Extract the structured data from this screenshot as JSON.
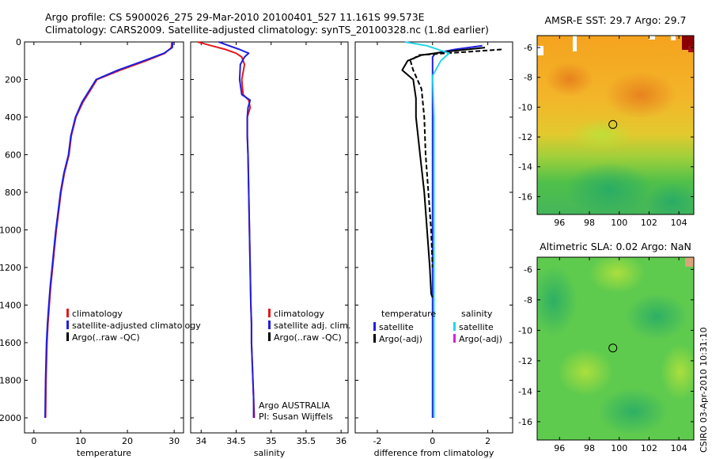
{
  "title": {
    "line1": "Argo profile: CS 5900026_275 29-Mar-2010 20100401_527 11.161S 99.573E",
    "line2": "Climatology: CARS2009. Satellite-adjusted climatology: synTS_20100328.nc (1.8d earlier)"
  },
  "depth_axis": {
    "ylim": [
      0,
      2080
    ],
    "ticks": [
      0,
      200,
      400,
      600,
      800,
      1000,
      1200,
      1400,
      1600,
      1800,
      2000
    ],
    "labels": [
      "0",
      "200",
      "400",
      "600",
      "800",
      "1000",
      "1200",
      "1400",
      "1600",
      "1800",
      "2000"
    ]
  },
  "colors": {
    "climatology": "#e31a1c",
    "satellite": "#1f1fe0",
    "argo": "#000000",
    "sal_satellite": "#21d6e8",
    "sal_argo": "#d61fd6"
  },
  "chart_data": [
    {
      "type": "line",
      "name": "temperature-panel",
      "xlabel": "temperature",
      "xlim": [
        -2,
        32
      ],
      "xticks": [
        0,
        10,
        20,
        30
      ],
      "xticklabels": [
        "0",
        "10",
        "20",
        "30"
      ],
      "legend": [
        "climatology",
        "satellite-adjusted climatology",
        "Argo(..raw -QC)"
      ],
      "series": [
        {
          "name": "climatology",
          "color": "#e31a1c",
          "x": [
            29.5,
            29.4,
            28.0,
            24.0,
            18.5,
            13.5,
            12.0,
            10.5,
            9.0,
            8.0,
            7.5,
            6.5,
            5.8,
            5.3,
            4.8,
            4.4,
            4.0,
            3.6,
            3.3,
            3.0,
            2.8,
            2.6,
            2.5
          ],
          "y": [
            0,
            30,
            60,
            100,
            150,
            200,
            260,
            320,
            400,
            500,
            600,
            700,
            800,
            900,
            1000,
            1100,
            1200,
            1300,
            1400,
            1500,
            1600,
            1800,
            2000
          ]
        },
        {
          "name": "satellite-adjusted",
          "color": "#1f1fe0",
          "x": [
            29.7,
            29.6,
            27.8,
            23.5,
            18.0,
            13.3,
            11.8,
            10.3,
            8.9,
            7.9,
            7.4,
            6.4,
            5.7,
            5.2,
            4.7,
            4.3,
            3.9,
            3.5,
            3.2,
            2.9,
            2.7,
            2.5,
            2.4
          ],
          "y": [
            0,
            30,
            60,
            100,
            150,
            200,
            260,
            320,
            400,
            500,
            600,
            700,
            800,
            900,
            1000,
            1100,
            1200,
            1300,
            1400,
            1500,
            1600,
            1800,
            2000
          ]
        }
      ]
    },
    {
      "type": "line",
      "name": "salinity-panel",
      "xlabel": "salinity",
      "xlim": [
        33.85,
        36.1
      ],
      "xticks": [
        34,
        34.5,
        35,
        35.5,
        36
      ],
      "xticklabels": [
        "34",
        "34.5",
        "35",
        "35.5",
        "36"
      ],
      "legend": [
        "climatology",
        "satellite adj. clim.",
        "Argo(..raw -QC)"
      ],
      "annotation": [
        "Argo AUSTRALIA",
        "PI: Susan Wijffels"
      ],
      "series": [
        {
          "name": "climatology",
          "color": "#e31a1c",
          "x": [
            33.95,
            34.15,
            34.35,
            34.5,
            34.58,
            34.62,
            34.58,
            34.6,
            34.68,
            34.7,
            34.66,
            34.66,
            34.67,
            34.68,
            34.69,
            34.7,
            34.71,
            34.72,
            34.72,
            34.73,
            34.74,
            34.75,
            34.76
          ],
          "y": [
            0,
            20,
            40,
            60,
            80,
            120,
            200,
            280,
            310,
            350,
            400,
            500,
            600,
            800,
            1000,
            1200,
            1400,
            1500,
            1600,
            1700,
            1800,
            1900,
            2000
          ]
        },
        {
          "name": "satellite-adjusted",
          "color": "#1f1fe0",
          "x": [
            34.25,
            34.4,
            34.55,
            34.68,
            34.62,
            34.56,
            34.55,
            34.58,
            34.7,
            34.67,
            34.66,
            34.66,
            34.67,
            34.68,
            34.69,
            34.7,
            34.71,
            34.72,
            34.72,
            34.73,
            34.74,
            34.75,
            34.75
          ],
          "y": [
            0,
            20,
            40,
            60,
            80,
            120,
            200,
            280,
            310,
            350,
            400,
            500,
            600,
            800,
            1000,
            1200,
            1400,
            1500,
            1600,
            1700,
            1800,
            1900,
            2000
          ]
        }
      ]
    },
    {
      "type": "line",
      "name": "difference-panel",
      "xlabel": "difference from climatology",
      "xlim": [
        -2.8,
        2.9
      ],
      "xticks": [
        -2,
        0,
        2
      ],
      "xticklabels": [
        "-2",
        "0",
        "2"
      ],
      "legend": [
        "temperature",
        "satellite",
        "Argo(-adj)",
        "salinity",
        "satellite",
        "Argo(-adj)"
      ],
      "series": [
        {
          "name": "temp-satellite",
          "color": "#1f1fe0",
          "x": [
            1.8,
            0.8,
            0.1,
            0.0,
            0.0,
            0.0,
            0.0,
            0.0
          ],
          "y": [
            20,
            40,
            60,
            80,
            100,
            400,
            1000,
            2000
          ]
        },
        {
          "name": "temp-argo",
          "color": "#000000",
          "x": [
            1.9,
            0.6,
            -0.4,
            -0.9,
            -1.1,
            -0.7,
            -0.6,
            -0.6,
            -0.45,
            -0.3,
            -0.2,
            -0.1,
            -0.05,
            0.0
          ],
          "y": [
            30,
            50,
            70,
            100,
            150,
            200,
            300,
            400,
            600,
            800,
            1000,
            1200,
            1340,
            1360
          ]
        },
        {
          "name": "temp-argo-dashed",
          "color": "#000000",
          "x": [
            2.5,
            1.0,
            -0.5,
            -0.8,
            -0.7,
            -0.4,
            -0.3,
            -0.25,
            -0.15,
            -0.05,
            0.0
          ],
          "y": [
            40,
            55,
            70,
            100,
            150,
            250,
            400,
            600,
            800,
            1000,
            1200
          ]
        },
        {
          "name": "sal-satellite",
          "color": "#21d6e8",
          "x": [
            -1.0,
            -0.2,
            0.6,
            0.3,
            0.0,
            0.05,
            0.05,
            0.05,
            0.05,
            0.05
          ],
          "y": [
            0,
            20,
            60,
            100,
            180,
            400,
            800,
            1200,
            1600,
            2000
          ]
        }
      ]
    }
  ],
  "maps": [
    {
      "title": "AMSR-E SST: 29.7 Argo: 29.7",
      "xlim": [
        94.5,
        105
      ],
      "ylim": [
        -17.2,
        -5.2
      ],
      "xticks": [
        96,
        98,
        100,
        102,
        104
      ],
      "xticklabels": [
        "96",
        "98",
        "100",
        "102",
        "104"
      ],
      "yticks": [
        -6,
        -8,
        -10,
        -12,
        -14,
        -16
      ],
      "yticklabels": [
        "-6",
        "-8",
        "-10",
        "-12",
        "-14",
        "-16"
      ],
      "marker": {
        "lon": 99.573,
        "lat": -11.161
      }
    },
    {
      "title": "Altimetric SLA: 0.02 Argo: NaN",
      "xlim": [
        94.5,
        105
      ],
      "ylim": [
        -17.2,
        -5.2
      ],
      "xticks": [
        96,
        98,
        100,
        102,
        104
      ],
      "xticklabels": [
        "96",
        "98",
        "100",
        "102",
        "104"
      ],
      "yticks": [
        -6,
        -8,
        -10,
        -12,
        -14,
        -16
      ],
      "yticklabels": [
        "-6",
        "-8",
        "-10",
        "-12",
        "-14",
        "-16"
      ],
      "marker": {
        "lon": 99.573,
        "lat": -11.161
      }
    }
  ],
  "footer": "CSIRO 03-Apr-2010 10:31:10"
}
